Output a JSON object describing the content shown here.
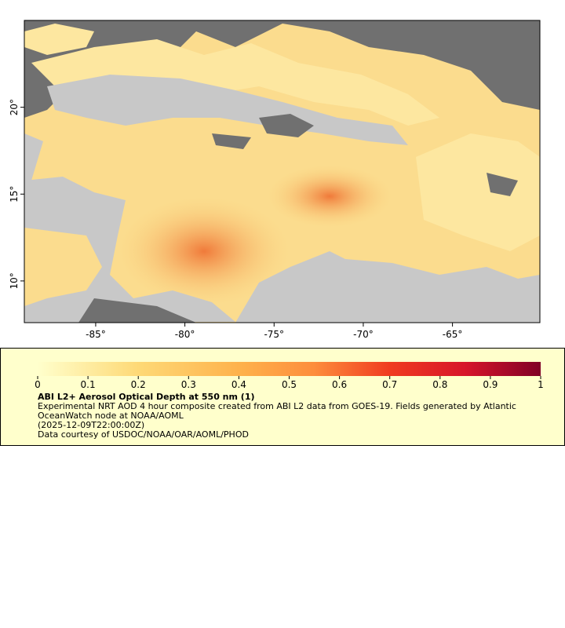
{
  "map": {
    "xlim": [
      -89,
      -60.1
    ],
    "ylim": [
      7.6,
      25
    ],
    "xticks": [
      {
        "value": -85,
        "label": "-85°"
      },
      {
        "value": -80,
        "label": "-80°"
      },
      {
        "value": -75,
        "label": "-75°"
      },
      {
        "value": -70,
        "label": "-70°"
      },
      {
        "value": -65,
        "label": "-65°"
      }
    ],
    "yticks": [
      {
        "value": 10,
        "label": "10°"
      },
      {
        "value": 15,
        "label": "15°"
      },
      {
        "value": 20,
        "label": "20°"
      }
    ]
  },
  "colorbar": {
    "lim": [
      0,
      1
    ],
    "ticks": [
      0,
      0.1,
      0.2,
      0.3,
      0.4,
      0.5,
      0.6,
      0.7,
      0.8,
      0.9,
      1
    ]
  },
  "caption": {
    "title": "ABI L2+ Aerosol Optical Depth at 550 nm (1)",
    "description": "Experimental NRT AOD 4 hour composite created from ABI L2 data from GOES-19. Fields generated by Atlantic OceanWatch node at NOAA/AOML",
    "timestamp": "(2025-12-09T22:00:00Z)",
    "credit": "Data courtesy of USDOC/NOAA/OAR/AOML/PHOD"
  }
}
